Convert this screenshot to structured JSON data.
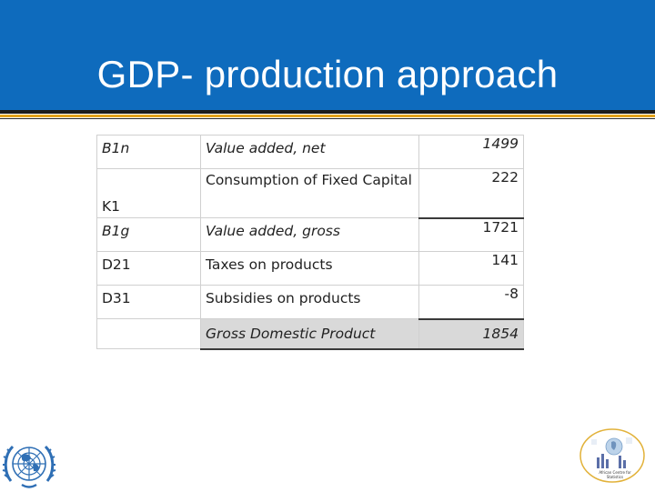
{
  "slide": {
    "title": "GDP- production approach"
  },
  "table": {
    "rows": [
      {
        "code": "B1n",
        "code_italic": true,
        "description": "Value added, net",
        "desc_italic": true,
        "value": "1499",
        "value_italic": true
      },
      {
        "code": "K1",
        "code_italic": false,
        "description": "Consumption of Fixed Capital",
        "desc_italic": false,
        "value": "222",
        "value_italic": false
      },
      {
        "code": "B1g",
        "code_italic": true,
        "description": "Value added, gross",
        "desc_italic": true,
        "value": "1721",
        "value_italic": false
      },
      {
        "code": "D21",
        "code_italic": false,
        "description": "Taxes on products",
        "desc_italic": false,
        "value": "141",
        "value_italic": false
      },
      {
        "code": "D31",
        "code_italic": false,
        "description": "Subsidies on products",
        "desc_italic": false,
        "value": "-8",
        "value_italic": false
      },
      {
        "code": "",
        "code_italic": false,
        "description": "Gross Domestic Product",
        "desc_italic": true,
        "value": "1854",
        "value_italic": true
      }
    ]
  },
  "logos": {
    "un": "un-emblem-icon",
    "statistics": "african-centre-for-statistics-logo",
    "statistics_caption": "African Centre for Statistics"
  },
  "colors": {
    "header_blue": "#0e6bbd",
    "rule_gold": "#e3a21a",
    "un_blue": "#2f6fb5",
    "total_shade": "#d9d9d9"
  }
}
